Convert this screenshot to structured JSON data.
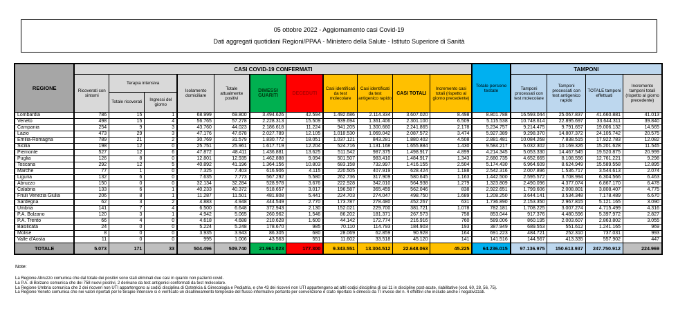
{
  "title": {
    "line1": "05 ottobre 2022 - Aggiornamento casi Covid-19",
    "line2": "Dati aggregati quotidiani Regioni/PPAA - Ministero della Salute - Istituto Superiore di Sanità"
  },
  "colors": {
    "header_gray": "#a6a6a6",
    "subheader_gray": "#d9d9d9",
    "total_gray": "#bfbfbf",
    "green": "#00b050",
    "red": "#ff0000",
    "yellow": "#ffc000",
    "cyan": "#00b0f0",
    "light_blue": "#bdd7ee"
  },
  "table": {
    "header": {
      "regione": "REGIONE",
      "casi_banner": "CASI COVID-19 CONFERMATI",
      "tamponi_banner": "TAMPONI",
      "ricoverati": "Ricoverati con sintomi",
      "terapia": "Terapia intensiva",
      "ti_totale": "Totale ricoverati",
      "ti_ingressi": "Ingressi del giorno",
      "isolamento": "Isolamento domiciliare",
      "positivi": "Totale attualmente positivi",
      "dimessi": "DIMESSI GUARITI",
      "deceduti": "DECEDUTI",
      "casi_molecolare": "Casi identificati da test molecolare",
      "casi_antigenico": "Casi identificati da test antigenico rapido",
      "casi_totali": "CASI TOTALI",
      "incremento_casi": "Incremento casi totali (rispetto al giorno precedente)",
      "testate": "Totale persone testate",
      "tamponi_molecolare": "Tamponi processati con test molecolare",
      "tamponi_antigenico": "Tamponi processati con test antigenico rapido",
      "tamponi_totale": "TOTALE tamponi effettuati",
      "incremento_tamponi": "Incremento tamponi totali (rispetto al giorno precedente)"
    },
    "rows": [
      {
        "regione": "Lombardia",
        "values": [
          "786",
          "15",
          "1",
          "68.999",
          "69.800",
          "3.494.626",
          "42.594",
          "1.492.686",
          "2.114.334",
          "3.607.020",
          "8.498",
          "8.801.788",
          "16.593.044",
          "25.067.837",
          "41.660.881",
          "41.013"
        ]
      },
      {
        "regione": "Veneto",
        "values": [
          "498",
          "15",
          "4",
          "56.765",
          "57.278",
          "2.228.313",
          "15.509",
          "939.694",
          "1.361.406",
          "2.301.100",
          "6.509",
          "5.115.538",
          "10.748.614",
          "22.895.697",
          "33.644.311",
          "39.840"
        ]
      },
      {
        "regione": "Campania",
        "values": [
          "254",
          "9",
          "3",
          "43.760",
          "44.023",
          "2.186.618",
          "11.224",
          "941.205",
          "1.300.660",
          "2.241.865",
          "2.178",
          "5.234.757",
          "9.214.475",
          "9.791.657",
          "19.006.132",
          "14.565"
        ]
      },
      {
        "regione": "Lazio",
        "values": [
          "473",
          "29",
          "3",
          "47.176",
          "47.678",
          "2.027.789",
          "12.105",
          "1.018.530",
          "1.069.042",
          "2.087.572",
          "3.474",
          "5.927.389",
          "9.298.370",
          "14.807.372",
          "24.105.742",
          "20.575"
        ]
      },
      {
        "regione": "Emilia-Romagna",
        "values": [
          "789",
          "21",
          "2",
          "30.769",
          "31.579",
          "1.830.772",
          "18.051",
          "1.037.121",
          "843.281",
          "1.880.402",
          "4.508",
          "2.881.481",
          "10.084.268",
          "7.838.515",
          "17.922.783",
          "12.082"
        ]
      },
      {
        "regione": "Sicilia",
        "values": [
          "198",
          "12",
          "0",
          "25.751",
          "25.961",
          "1.617.719",
          "12.204",
          "524.716",
          "1.131.168",
          "1.655.884",
          "1.430",
          "9.584.217",
          "5.032.302",
          "10.169.326",
          "15.201.628",
          "11.545"
        ]
      },
      {
        "regione": "Piemonte",
        "values": [
          "527",
          "12",
          "6",
          "47.872",
          "48.411",
          "1.436.881",
          "13.625",
          "511.542",
          "987.375",
          "1.498.917",
          "4.899",
          "4.214.345",
          "5.053.330",
          "14.467.545",
          "19.520.875",
          "20.999"
        ]
      },
      {
        "regione": "Puglia",
        "values": [
          "126",
          "8",
          "0",
          "12.801",
          "12.935",
          "1.462.888",
          "9.094",
          "501.507",
          "983.410",
          "1.484.917",
          "1.343",
          "2.680.735",
          "4.652.665",
          "8.108.556",
          "12.761.221",
          "9.298"
        ]
      },
      {
        "regione": "Toscana",
        "values": [
          "292",
          "12",
          "5",
          "40.892",
          "41.196",
          "1.364.156",
          "10.803",
          "683.158",
          "732.997",
          "1.416.155",
          "2.504",
          "5.174.430",
          "6.964.609",
          "8.624.949",
          "15.589.558",
          "12.895"
        ]
      },
      {
        "regione": "Marche",
        "values": [
          "77",
          "1",
          "0",
          "7.325",
          "7.403",
          "616.906",
          "4.115",
          "220.505",
          "407.919",
          "628.424",
          "1.188",
          "2.542.316",
          "2.007.896",
          "1.536.717",
          "3.544.613",
          "2.074"
        ]
      },
      {
        "regione": "Liguria",
        "values": [
          "132",
          "6",
          "0",
          "7.635",
          "7.773",
          "567.292",
          "5.580",
          "262.736",
          "317.909",
          "580.645",
          "1.163",
          "1.442.500",
          "2.595.572",
          "3.708.994",
          "6.304.566",
          "6.463"
        ]
      },
      {
        "regione": "Abruzzo",
        "values": [
          "150",
          "0",
          "0",
          "32.134",
          "32.284",
          "528.978",
          "3.676",
          "222.928",
          "342.010",
          "564.938",
          "1.279",
          "1.323.809",
          "2.490.096",
          "4.377.074",
          "6.867.170",
          "6.478"
        ]
      },
      {
        "regione": "Calabria",
        "values": [
          "133",
          "6",
          "1",
          "40.233",
          "40.372",
          "518.657",
          "3.017",
          "196.587",
          "365.459",
          "562.046",
          "838",
          "2.922.651",
          "1.799.606",
          "2.008.801",
          "3.808.407",
          "4.775"
        ]
      },
      {
        "regione": "Friuli Venezia Giulia",
        "values": [
          "206",
          "8",
          "1",
          "11.287",
          "11.501",
          "481.808",
          "5.441",
          "224.703",
          "274.047",
          "498.750",
          "1.689",
          "1.208.250",
          "3.644.141",
          "3.534.348",
          "7.178.489",
          "6.670"
        ]
      },
      {
        "regione": "Sardegna",
        "values": [
          "62",
          "3",
          "2",
          "4.883",
          "4.948",
          "444.549",
          "2.770",
          "173.787",
          "278.480",
          "452.267",
          "631",
          "1.736.890",
          "2.153.350",
          "2.967.815",
          "5.121.165",
          "3.090"
        ]
      },
      {
        "regione": "Umbria",
        "values": [
          "141",
          "7",
          "4",
          "6.500",
          "6.648",
          "372.943",
          "2.130",
          "152.021",
          "229.700",
          "381.721",
          "1.078",
          "782.181",
          "1.708.225",
          "3.007.274",
          "4.715.499",
          "4.316"
        ]
      },
      {
        "regione": "P.A. Bolzano",
        "values": [
          "120",
          "3",
          "1",
          "4.942",
          "5.065",
          "260.962",
          "1.546",
          "86.202",
          "181.371",
          "267.573",
          "758",
          "853.044",
          "917.376",
          "4.480.596",
          "5.397.972",
          "2.827"
        ]
      },
      {
        "regione": "P.A. Trento",
        "values": [
          "66",
          "4",
          "0",
          "4.618",
          "4.688",
          "210.628",
          "1.600",
          "44.142",
          "172.774",
          "216.916",
          "760",
          "589.006",
          "860.195",
          "2.003.607",
          "2.863.802",
          "3.055"
        ]
      },
      {
        "regione": "Basilicata",
        "values": [
          "24",
          "0",
          "0",
          "5.224",
          "5.248",
          "178.670",
          "985",
          "70.110",
          "114.793",
          "184.903",
          "193",
          "387.949",
          "689.553",
          "551.612",
          "1.241.165",
          "969"
        ]
      },
      {
        "regione": "Molise",
        "values": [
          "8",
          "0",
          "0",
          "3.935",
          "3.943",
          "86.305",
          "680",
          "28.069",
          "62.859",
          "90.928",
          "164",
          "691.223",
          "484.721",
          "252.310",
          "737.031",
          "993"
        ]
      },
      {
        "regione": "Valle d'Aosta",
        "values": [
          "11",
          "0",
          "0",
          "995",
          "1.006",
          "43.563",
          "551",
          "11.602",
          "33.518",
          "45.120",
          "141",
          "141.516",
          "144.567",
          "413.335",
          "557.902",
          "447"
        ]
      }
    ],
    "totale": {
      "regione": "TOTALE",
      "values": [
        "5.073",
        "171",
        "33",
        "504.496",
        "509.740",
        "21.961.023",
        "177.300",
        "9.343.551",
        "13.304.512",
        "22.648.063",
        "45.225",
        "64.236.015",
        "97.136.975",
        "150.613.937",
        "247.750.912",
        "224.969"
      ]
    }
  },
  "notes": {
    "label": "Note:",
    "items": [
      "La Regione Abruzzo  comunica che dal totale dei positivi sono stati eliminati due casi in quanto non pazienti covid.",
      "La P.A. di Bolzano comunica che dei 758 nuovi positivi, 2 derivano da test antigenici confermati da test molecolare.",
      "La Regione Umbria comunica che 2 dei ricoveri non UTI appartengono ai codici disciplina di Ostetricia & Ginecologia e Pediatria, e che 43 dei ricoveri non UTI appartengono ad altri codici disciplina di cui 11 in discipline post-acute, riabilitative (cod. 60, 28, 56, 75).",
      "La Regione Veneto comunica che nei valori riportati per le terapie intensive si è verificato un disallineamento temporale del flusso informativo pertanto per convenzione è stato riportato 5 dimessi da TI invece del n. 4 effettivi che include anche i negativizzati."
    ]
  }
}
